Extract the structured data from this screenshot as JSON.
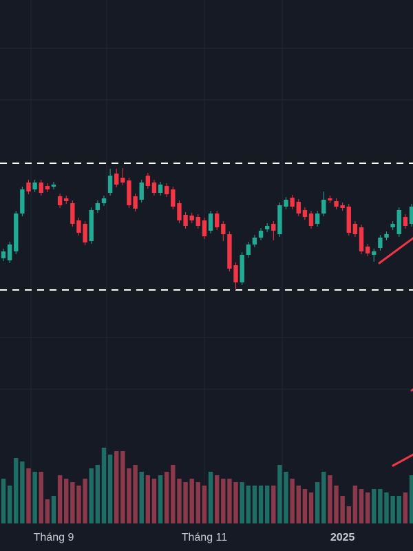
{
  "chart_data": {
    "type": "candlestick",
    "up_color": "#22ab94",
    "down_color": "#f23645",
    "volume_up_color": "#1f6e66",
    "volume_down_color": "#8c3a4b",
    "level_color": "#ffffff",
    "levels": [
      213,
      29
    ],
    "ylim": [
      0,
      300
    ],
    "volume_lim": [
      0,
      150
    ],
    "categories": [
      null,
      null,
      null,
      null,
      null,
      null,
      null,
      null,
      "Tháng 9",
      null,
      null,
      null,
      null,
      null,
      null,
      null,
      null,
      null,
      null,
      null,
      null,
      null,
      null,
      null,
      null,
      null,
      null,
      null,
      null,
      null,
      null,
      null,
      "Tháng 11",
      null,
      null,
      null,
      null,
      null,
      null,
      null,
      null,
      null,
      null,
      null,
      null,
      null,
      null,
      null,
      null,
      null,
      null,
      null,
      null,
      null,
      "2025",
      null,
      null,
      null,
      null,
      null,
      null,
      null,
      null,
      null,
      null,
      null
    ],
    "open": [
      75,
      72,
      85,
      140,
      185,
      175,
      185,
      180,
      179,
      165,
      162,
      155,
      130,
      125,
      100,
      145,
      155,
      170,
      198,
      192,
      188,
      165,
      160,
      195,
      185,
      170,
      180,
      175,
      155,
      138,
      137,
      135,
      130,
      115,
      140,
      125,
      110,
      65,
      40,
      80,
      95,
      105,
      117,
      125,
      110,
      150,
      163,
      157,
      145,
      140,
      125,
      140,
      162,
      158,
      152,
      150,
      125,
      120,
      92,
      80,
      90,
      105,
      120,
      110,
      135,
      125
    ],
    "high": [
      89,
      99,
      144,
      179,
      189,
      189,
      189,
      184,
      186,
      169,
      166,
      159,
      134,
      129,
      149,
      159,
      166,
      205,
      205,
      206,
      192,
      169,
      189,
      199,
      189,
      186,
      184,
      179,
      159,
      142,
      141,
      139,
      134,
      144,
      144,
      129,
      114,
      69,
      84,
      99,
      109,
      119,
      126,
      129,
      156,
      164,
      167,
      161,
      149,
      144,
      144,
      172,
      166,
      162,
      156,
      154,
      129,
      124,
      96,
      89,
      109,
      114,
      129,
      149,
      139,
      154
    ],
    "low": [
      71,
      68,
      81,
      136,
      168,
      171,
      166,
      171,
      175,
      148,
      154,
      121,
      108,
      94,
      96,
      141,
      151,
      166,
      178,
      181,
      148,
      143,
      156,
      176,
      166,
      166,
      164,
      146,
      126,
      118,
      126,
      118,
      103,
      111,
      116,
      100,
      56,
      29,
      36,
      76,
      91,
      101,
      113,
      101,
      106,
      146,
      146,
      136,
      131,
      118,
      121,
      136,
      155,
      146,
      144,
      108,
      106,
      81,
      78,
      70,
      86,
      101,
      116,
      106,
      118,
      121
    ],
    "close": [
      85,
      95,
      140,
      175,
      172,
      185,
      170,
      175,
      182,
      152,
      158,
      125,
      112,
      98,
      145,
      155,
      162,
      195,
      182,
      185,
      152,
      147,
      185,
      180,
      170,
      182,
      168,
      150,
      130,
      122,
      130,
      122,
      107,
      140,
      120,
      110,
      60,
      40,
      80,
      95,
      105,
      115,
      122,
      115,
      152,
      160,
      150,
      140,
      135,
      122,
      140,
      160,
      159,
      150,
      148,
      112,
      110,
      85,
      82,
      85,
      105,
      110,
      125,
      145,
      122,
      150
    ],
    "volume": [
      65,
      55,
      95,
      90,
      80,
      75,
      75,
      35,
      40,
      70,
      65,
      60,
      55,
      65,
      80,
      85,
      110,
      100,
      105,
      105,
      80,
      85,
      75,
      70,
      65,
      70,
      75,
      85,
      65,
      60,
      65,
      60,
      55,
      75,
      70,
      65,
      65,
      60,
      60,
      55,
      55,
      55,
      55,
      55,
      85,
      75,
      65,
      55,
      50,
      45,
      60,
      75,
      70,
      55,
      40,
      25,
      55,
      50,
      45,
      50,
      50,
      45,
      40,
      40,
      45,
      70
    ]
  }
}
